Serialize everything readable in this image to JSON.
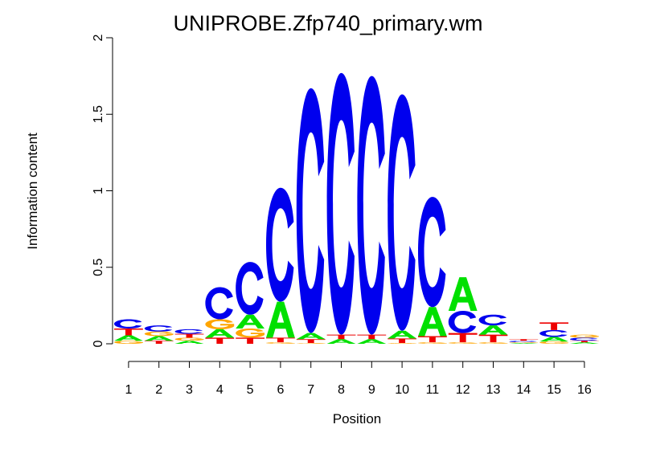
{
  "chart_data": {
    "type": "sequence-logo",
    "title": "UNIPROBE.Zfp740_primary.wm",
    "xlabel": "Position",
    "ylabel": "Information content",
    "ylim": [
      0,
      2
    ],
    "y_ticks": [
      "0",
      "0.5",
      "1",
      "1.5",
      "2"
    ],
    "positions": [
      "1",
      "2",
      "3",
      "4",
      "5",
      "6",
      "7",
      "8",
      "9",
      "10",
      "11",
      "12",
      "13",
      "14",
      "15",
      "16"
    ],
    "colors": {
      "A": "#00e000",
      "C": "#0000ee",
      "G": "#ffa500",
      "T": "#ee0000"
    },
    "columns": [
      [
        {
          "base": "G",
          "height": 0.02
        },
        {
          "base": "A",
          "height": 0.035
        },
        {
          "base": "T",
          "height": 0.045
        },
        {
          "base": "C",
          "height": 0.06
        }
      ],
      [
        {
          "base": "T",
          "height": 0.02
        },
        {
          "base": "A",
          "height": 0.03
        },
        {
          "base": "G",
          "height": 0.03
        },
        {
          "base": "C",
          "height": 0.04
        }
      ],
      [
        {
          "base": "A",
          "height": 0.02
        },
        {
          "base": "G",
          "height": 0.02
        },
        {
          "base": "T",
          "height": 0.025
        },
        {
          "base": "C",
          "height": 0.03
        }
      ],
      [
        {
          "base": "T",
          "height": 0.04
        },
        {
          "base": "A",
          "height": 0.055
        },
        {
          "base": "G",
          "height": 0.065
        },
        {
          "base": "C",
          "height": 0.21
        }
      ],
      [
        {
          "base": "T",
          "height": 0.04
        },
        {
          "base": "G",
          "height": 0.06
        },
        {
          "base": "A",
          "height": 0.09
        },
        {
          "base": "C",
          "height": 0.345
        }
      ],
      [
        {
          "base": "G",
          "height": 0.01
        },
        {
          "base": "T",
          "height": 0.03
        },
        {
          "base": "A",
          "height": 0.235
        },
        {
          "base": "C",
          "height": 0.745
        }
      ],
      [
        {
          "base": "G",
          "height": 0.005
        },
        {
          "base": "T",
          "height": 0.025
        },
        {
          "base": "A",
          "height": 0.04
        },
        {
          "base": "C",
          "height": 1.6
        }
      ],
      [
        {
          "base": "A",
          "height": 0.03
        },
        {
          "base": "T",
          "height": 0.03
        },
        {
          "base": "C",
          "height": 1.71
        }
      ],
      [
        {
          "base": "A",
          "height": 0.03
        },
        {
          "base": "T",
          "height": 0.03
        },
        {
          "base": "C",
          "height": 1.69
        }
      ],
      [
        {
          "base": "G",
          "height": 0.005
        },
        {
          "base": "T",
          "height": 0.03
        },
        {
          "base": "A",
          "height": 0.05
        },
        {
          "base": "C",
          "height": 1.545
        }
      ],
      [
        {
          "base": "G",
          "height": 0.01
        },
        {
          "base": "T",
          "height": 0.04
        },
        {
          "base": "A",
          "height": 0.19
        },
        {
          "base": "C",
          "height": 0.72
        }
      ],
      [
        {
          "base": "G",
          "height": 0.01
        },
        {
          "base": "T",
          "height": 0.06
        },
        {
          "base": "C",
          "height": 0.145
        },
        {
          "base": "A",
          "height": 0.22
        }
      ],
      [
        {
          "base": "G",
          "height": 0.01
        },
        {
          "base": "T",
          "height": 0.05
        },
        {
          "base": "A",
          "height": 0.06
        },
        {
          "base": "C",
          "height": 0.07
        }
      ],
      [
        {
          "base": "A",
          "height": 0.005
        },
        {
          "base": "G",
          "height": 0.005
        },
        {
          "base": "C",
          "height": 0.01
        },
        {
          "base": "T",
          "height": 0.01
        }
      ],
      [
        {
          "base": "G",
          "height": 0.015
        },
        {
          "base": "A",
          "height": 0.03
        },
        {
          "base": "C",
          "height": 0.045
        },
        {
          "base": "T",
          "height": 0.05
        }
      ],
      [
        {
          "base": "A",
          "height": 0.01
        },
        {
          "base": "T",
          "height": 0.01
        },
        {
          "base": "C",
          "height": 0.02
        },
        {
          "base": "G",
          "height": 0.02
        }
      ]
    ]
  }
}
